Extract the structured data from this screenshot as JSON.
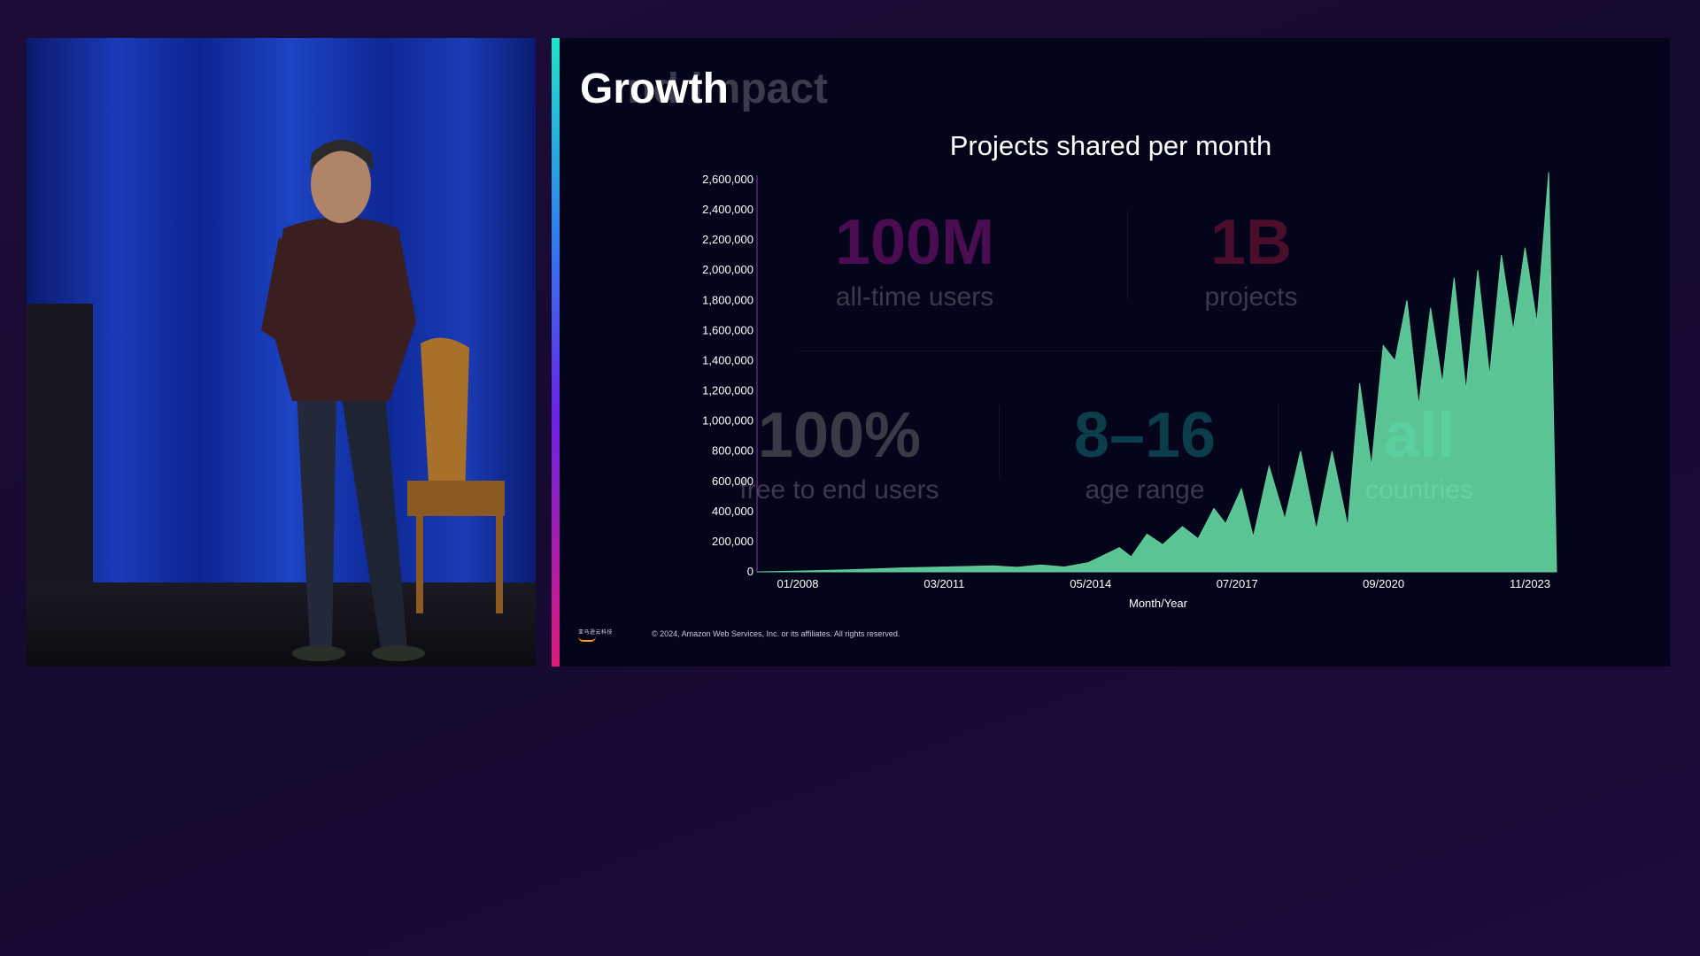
{
  "slide": {
    "title": "Growth",
    "ghost_title_tail": "    nd impact",
    "footer_text": "© 2024, Amazon Web Services, Inc. or its affiliates. All rights reserved.",
    "logo_text": "亚马逊云科技"
  },
  "ghost_stats": [
    {
      "value": "100M",
      "label": "all-time users",
      "color": "#4a0d52",
      "label_color": "#3a3a4a"
    },
    {
      "value": "1B",
      "label": "projects",
      "color": "#4a0d2c",
      "label_color": "#3a3a4a"
    },
    {
      "value": "100%",
      "label": "free to end users",
      "color": "#3a3a46",
      "label_color": "#3a3a4a"
    },
    {
      "value": "8–16",
      "label": "age range",
      "color": "#0c3d4a",
      "label_color": "#3a3a4a"
    },
    {
      "value": "all",
      "label": "countries",
      "color": "#1fe0d6",
      "label_color": "#ffffff"
    }
  ],
  "chart_data": {
    "type": "area",
    "title": "Projects shared per month",
    "xlabel": "Month/Year",
    "ylabel": "",
    "ylim": [
      0,
      2600000
    ],
    "y_ticks": [
      0,
      200000,
      400000,
      600000,
      800000,
      1000000,
      1200000,
      1400000,
      1600000,
      1800000,
      2000000,
      2200000,
      2400000,
      2600000
    ],
    "y_tick_labels": [
      "0",
      "200,000",
      "400,000",
      "600,000",
      "800,000",
      "1,000,000",
      "1,200,000",
      "1,400,000",
      "1,600,000",
      "1,800,000",
      "2,000,000",
      "2,200,000",
      "2,400,000",
      "2,600,000"
    ],
    "x_tick_labels": [
      "01/2008",
      "03/2011",
      "05/2014",
      "07/2017",
      "09/2020",
      "11/2023"
    ],
    "x_range": [
      "2007-06",
      "2024-05"
    ],
    "series": [
      {
        "name": "",
        "color": "#5fcf9c",
        "points": [
          [
            "2007-06",
            0
          ],
          [
            "2008-06",
            6000
          ],
          [
            "2009-06",
            14000
          ],
          [
            "2010-06",
            25000
          ],
          [
            "2011-06",
            32000
          ],
          [
            "2012-06",
            40000
          ],
          [
            "2012-12",
            30000
          ],
          [
            "2013-06",
            45000
          ],
          [
            "2013-12",
            32000
          ],
          [
            "2014-06",
            60000
          ],
          [
            "2014-10",
            110000
          ],
          [
            "2015-02",
            160000
          ],
          [
            "2015-05",
            100000
          ],
          [
            "2015-09",
            250000
          ],
          [
            "2016-01",
            180000
          ],
          [
            "2016-06",
            300000
          ],
          [
            "2016-10",
            220000
          ],
          [
            "2017-02",
            420000
          ],
          [
            "2017-05",
            320000
          ],
          [
            "2017-09",
            550000
          ],
          [
            "2017-12",
            230000
          ],
          [
            "2018-04",
            700000
          ],
          [
            "2018-08",
            350000
          ],
          [
            "2018-12",
            800000
          ],
          [
            "2019-04",
            280000
          ],
          [
            "2019-08",
            800000
          ],
          [
            "2019-12",
            300000
          ],
          [
            "2020-03",
            1250000
          ],
          [
            "2020-06",
            700000
          ],
          [
            "2020-09",
            1500000
          ],
          [
            "2020-12",
            1400000
          ],
          [
            "2021-03",
            1800000
          ],
          [
            "2021-06",
            1100000
          ],
          [
            "2021-09",
            1750000
          ],
          [
            "2021-12",
            1250000
          ],
          [
            "2022-03",
            1950000
          ],
          [
            "2022-06",
            1200000
          ],
          [
            "2022-09",
            2000000
          ],
          [
            "2022-12",
            1300000
          ],
          [
            "2023-03",
            2100000
          ],
          [
            "2023-06",
            1600000
          ],
          [
            "2023-09",
            2150000
          ],
          [
            "2023-12",
            1650000
          ],
          [
            "2024-03",
            2650000
          ],
          [
            "2024-05",
            0
          ]
        ]
      }
    ],
    "grid": false,
    "legend": "none"
  }
}
